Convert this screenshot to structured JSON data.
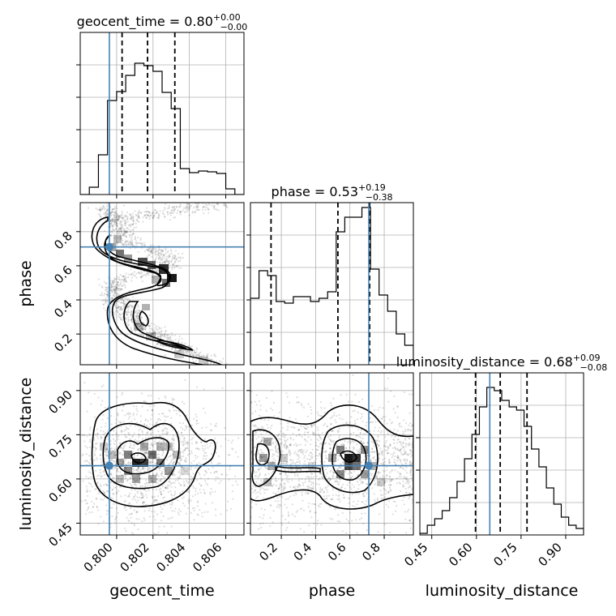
{
  "chart_data": {
    "type": "corner",
    "parameters": [
      "geocent_time",
      "phase",
      "luminosity_distance"
    ],
    "truths": {
      "geocent_time": 0.7996,
      "phase": 0.71,
      "luminosity_distance": 0.645
    },
    "panels": [
      {
        "kind": "hist",
        "param": "geocent_time",
        "title": {
          "base": "geocent_time = 0.80",
          "sup": "+0.00",
          "sub": "−0.00"
        },
        "xlim": [
          0.798,
          0.807
        ],
        "ylim": [
          0,
          1.0
        ],
        "bin_edges": [
          0.798,
          0.7985,
          0.799,
          0.7995,
          0.8,
          0.8005,
          0.801,
          0.8015,
          0.802,
          0.8025,
          0.803,
          0.8035,
          0.804,
          0.8045,
          0.805,
          0.8055,
          0.806,
          0.8065,
          0.807
        ],
        "counts": [
          0.0,
          0.045,
          0.245,
          0.58,
          0.635,
          0.735,
          0.81,
          0.795,
          0.76,
          0.63,
          0.53,
          0.16,
          0.135,
          0.145,
          0.14,
          0.13,
          0.035,
          0.0
        ],
        "quantiles": [
          0.8003,
          0.8017,
          0.8032
        ],
        "xticks": [
          0.8,
          0.802,
          0.804,
          0.806
        ],
        "xtick_labels": [
          "0.800",
          "0.802",
          "0.804",
          "0.806"
        ],
        "xlabel": "geocent_time"
      },
      {
        "kind": "hist",
        "param": "phase",
        "title": {
          "base": "phase = 0.53",
          "sup": "+0.19",
          "sub": "−0.38"
        },
        "xlim": [
          0.02,
          0.97
        ],
        "ylim": [
          0,
          1.0
        ],
        "bin_edges": [
          0.02,
          0.07,
          0.12,
          0.17,
          0.22,
          0.27,
          0.32,
          0.37,
          0.42,
          0.47,
          0.52,
          0.57,
          0.62,
          0.67,
          0.72,
          0.77,
          0.82,
          0.87,
          0.92,
          0.97
        ],
        "counts": [
          0.41,
          0.58,
          0.55,
          0.39,
          0.38,
          0.42,
          0.42,
          0.39,
          0.41,
          0.45,
          0.82,
          0.91,
          0.91,
          0.97,
          0.59,
          0.43,
          0.33,
          0.19,
          0.12
        ],
        "quantiles": [
          0.14,
          0.53,
          0.715
        ],
        "xticks": [
          0.2,
          0.4,
          0.6,
          0.8
        ],
        "xtick_labels": [
          "0.2",
          "0.4",
          "0.6",
          "0.8"
        ],
        "xlabel": "phase"
      },
      {
        "kind": "hist",
        "param": "luminosity_distance",
        "title": {
          "base": "luminosity_distance = 0.68",
          "sup": "+0.09",
          "sub": "−0.08"
        },
        "xlim": [
          0.41,
          0.96
        ],
        "ylim": [
          0,
          1.0
        ],
        "bin_edges": [
          0.41,
          0.435,
          0.46,
          0.485,
          0.51,
          0.535,
          0.56,
          0.585,
          0.61,
          0.635,
          0.66,
          0.685,
          0.71,
          0.735,
          0.76,
          0.785,
          0.81,
          0.835,
          0.86,
          0.885,
          0.91,
          0.935,
          0.96
        ],
        "counts": [
          0.01,
          0.06,
          0.1,
          0.15,
          0.23,
          0.33,
          0.47,
          0.62,
          0.79,
          0.91,
          0.89,
          0.83,
          0.79,
          0.77,
          0.67,
          0.53,
          0.42,
          0.29,
          0.19,
          0.11,
          0.06,
          0.04
        ],
        "quantiles": [
          0.597,
          0.68,
          0.77
        ],
        "xticks": [
          0.45,
          0.6,
          0.75,
          0.9
        ],
        "xtick_labels": [
          "0.45",
          "0.60",
          "0.75",
          "0.90"
        ],
        "xlabel": "luminosity_distance"
      },
      {
        "kind": "2d",
        "x": "geocent_time",
        "y": "phase",
        "xlim": [
          0.798,
          0.807
        ],
        "ylim": [
          0.02,
          0.97
        ],
        "yticks": [
          0.2,
          0.4,
          0.6,
          0.8
        ],
        "ytick_labels": [
          "0.2",
          "0.4",
          "0.6",
          "0.8"
        ],
        "ylabel": "phase"
      },
      {
        "kind": "2d",
        "x": "geocent_time",
        "y": "luminosity_distance",
        "xlim": [
          0.798,
          0.807
        ],
        "ylim": [
          0.41,
          0.96
        ],
        "yticks": [
          0.45,
          0.6,
          0.75,
          0.9
        ],
        "ytick_labels": [
          "0.45",
          "0.60",
          "0.75",
          "0.90"
        ],
        "ylabel": "luminosity_distance"
      },
      {
        "kind": "2d",
        "x": "phase",
        "y": "luminosity_distance",
        "xlim": [
          0.02,
          0.97
        ],
        "ylim": [
          0.41,
          0.96
        ]
      }
    ]
  }
}
